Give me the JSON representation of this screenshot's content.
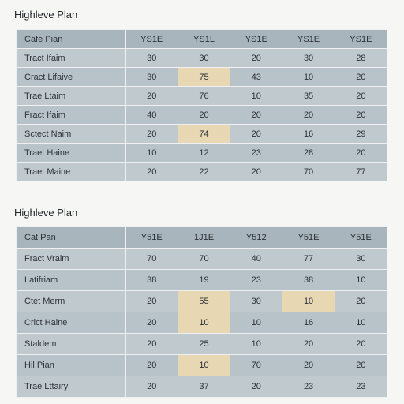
{
  "tables": [
    {
      "title": "Highleve Plan",
      "header": [
        "Cafe Pian",
        "YS1E",
        "YS1L",
        "YS1E",
        "YS1E",
        "YS1E"
      ],
      "rows": [
        {
          "label": "Tract Ifaim",
          "cells": [
            "30",
            "30",
            "20",
            "30",
            "28"
          ]
        },
        {
          "label": "Cract Lifaive",
          "cells": [
            "30",
            "75",
            "43",
            "10",
            "20"
          ]
        },
        {
          "label": "Trae Ltaim",
          "cells": [
            "20",
            "76",
            "10",
            "35",
            "20"
          ]
        },
        {
          "label": "Fract Ifaim",
          "cells": [
            "40",
            "20",
            "20",
            "20",
            "20"
          ]
        },
        {
          "label": "Sctect Naim",
          "cells": [
            "20",
            "74",
            "20",
            "16",
            "29"
          ]
        },
        {
          "label": "Traet Haine",
          "cells": [
            "10",
            "12",
            "23",
            "28",
            "20"
          ]
        },
        {
          "label": "Traet Maine",
          "cells": [
            "20",
            "22",
            "20",
            "70",
            "77"
          ]
        }
      ],
      "highlight_color": "#e7d8b3",
      "highlights": [
        [
          1,
          1
        ],
        [
          4,
          1
        ]
      ]
    },
    {
      "title": "Highleve Plan",
      "header": [
        "Cat Pan",
        "Y51E",
        "1J1E",
        "Y512",
        "Y51E",
        "Y51E"
      ],
      "rows": [
        {
          "label": "Fract Vraim",
          "cells": [
            "70",
            "70",
            "40",
            "77",
            "30"
          ]
        },
        {
          "label": "Latifriam",
          "cells": [
            "38",
            "19",
            "23",
            "38",
            "10"
          ]
        },
        {
          "label": "Ctet Merm",
          "cells": [
            "20",
            "55",
            "30",
            "10",
            "20"
          ]
        },
        {
          "label": "Crict Haine",
          "cells": [
            "20",
            "10",
            "10",
            "16",
            "10"
          ]
        },
        {
          "label": "Staldem",
          "cells": [
            "20",
            "25",
            "10",
            "20",
            "20"
          ]
        },
        {
          "label": "Hil Pian",
          "cells": [
            "20",
            "10",
            "70",
            "20",
            "20"
          ]
        },
        {
          "label": "Trae Lttairy",
          "cells": [
            "20",
            "37",
            "20",
            "23",
            "23"
          ]
        }
      ],
      "highlight_color": "#e7d8b3",
      "highlights": [
        [
          2,
          1
        ],
        [
          2,
          3
        ],
        [
          3,
          1
        ],
        [
          5,
          1
        ]
      ]
    }
  ]
}
